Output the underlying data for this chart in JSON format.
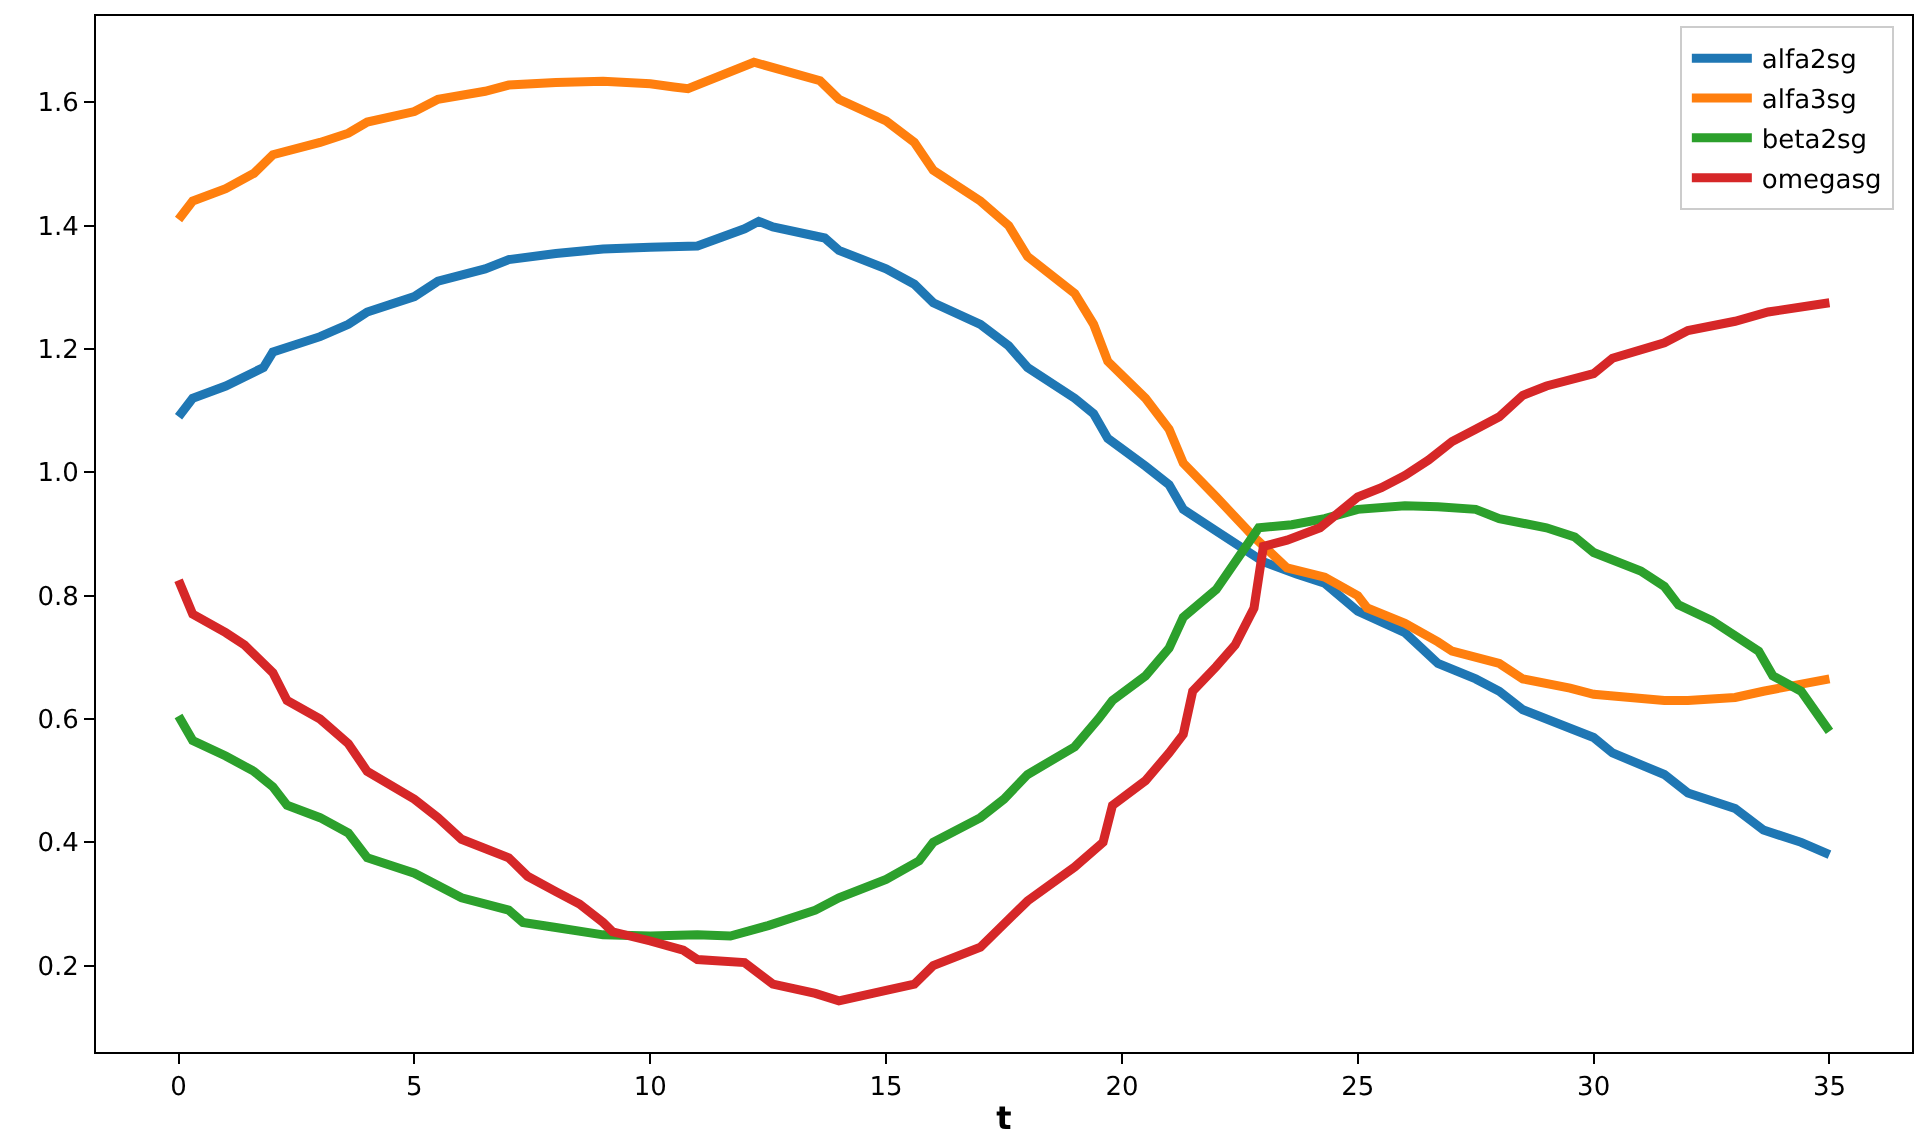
{
  "chart_data": {
    "type": "line",
    "xlabel": "t",
    "xlim": [
      -1.75,
      36.75
    ],
    "xticks": [
      0,
      5,
      10,
      15,
      20,
      25,
      30,
      35
    ],
    "ylim": [
      0.06,
      1.74
    ],
    "yticks": [
      0.2,
      0.4,
      0.6,
      0.8,
      {
        "value": 1,
        "label": "1.0"
      },
      1.2,
      1.4,
      1.6
    ],
    "legend": "top right",
    "marker": "none",
    "line_style": "solid",
    "series": [
      {
        "name": "alfa2sg",
        "color": "#1f77b4",
        "x": [
          0,
          0.3,
          1,
          1.8,
          2,
          3,
          3.6,
          4,
          5,
          5.5,
          6.5,
          7,
          8,
          9,
          10,
          11,
          12,
          12.3,
          12.6,
          13.7,
          14,
          15,
          15.6,
          16,
          17,
          17.6,
          18,
          19,
          19.4,
          19.7,
          20.5,
          21,
          21.3,
          22,
          23,
          23.7,
          24.3,
          25,
          26,
          26.7,
          27.5,
          28,
          28.5,
          29.5,
          30,
          30.4,
          31.5,
          32,
          33,
          33.6,
          34.4,
          35
        ],
        "values": [
          1.09,
          1.12,
          1.14,
          1.17,
          1.195,
          1.22,
          1.24,
          1.26,
          1.285,
          1.31,
          1.33,
          1.345,
          1.355,
          1.362,
          1.365,
          1.367,
          1.395,
          1.407,
          1.398,
          1.38,
          1.36,
          1.33,
          1.305,
          1.275,
          1.24,
          1.205,
          1.17,
          1.12,
          1.095,
          1.055,
          1.01,
          0.98,
          0.94,
          0.905,
          0.855,
          0.835,
          0.82,
          0.775,
          0.74,
          0.69,
          0.665,
          0.645,
          0.615,
          0.585,
          0.57,
          0.545,
          0.51,
          0.48,
          0.455,
          0.42,
          0.4,
          0.38
        ]
      },
      {
        "name": "alfa3sg",
        "color": "#ff7f0e",
        "x": [
          0,
          0.3,
          1,
          1.6,
          2,
          3,
          3.6,
          4,
          5,
          5.5,
          6.5,
          7,
          8,
          9,
          10,
          10.5,
          10.8,
          12.2,
          13.6,
          14,
          15,
          15.6,
          16,
          17,
          17.6,
          18,
          19,
          19.4,
          19.7,
          20.5,
          21,
          21.3,
          22,
          22.8,
          23.5,
          24.3,
          25,
          25.2,
          26,
          26.7,
          27,
          28,
          28.5,
          29.5,
          30,
          31.5,
          32,
          33,
          33.6,
          35
        ],
        "values": [
          1.41,
          1.44,
          1.46,
          1.485,
          1.515,
          1.535,
          1.55,
          1.568,
          1.585,
          1.605,
          1.618,
          1.628,
          1.632,
          1.634,
          1.63,
          1.625,
          1.622,
          1.665,
          1.635,
          1.605,
          1.57,
          1.535,
          1.49,
          1.44,
          1.4,
          1.35,
          1.29,
          1.24,
          1.18,
          1.12,
          1.07,
          1.015,
          0.96,
          0.895,
          0.845,
          0.83,
          0.8,
          0.78,
          0.755,
          0.725,
          0.71,
          0.69,
          0.665,
          0.65,
          0.64,
          0.63,
          0.63,
          0.635,
          0.645,
          0.665
        ]
      },
      {
        "name": "beta2sg",
        "color": "#2ca02c",
        "x": [
          0,
          0.3,
          1,
          1.6,
          2,
          2.3,
          3,
          3.6,
          4,
          5,
          5.5,
          6,
          7,
          7.3,
          8,
          9,
          10,
          11,
          11.7,
          12.5,
          13.5,
          14,
          15,
          15.7,
          16,
          17,
          17.5,
          18,
          19,
          19.5,
          19.8,
          20.5,
          21,
          21.3,
          22,
          22.9,
          23.6,
          24.3,
          25,
          26,
          26.7,
          27.5,
          28,
          29,
          29.6,
          30,
          31,
          31.5,
          31.8,
          32.5,
          33,
          33.5,
          33.8,
          34.4,
          35
        ],
        "values": [
          0.605,
          0.565,
          0.54,
          0.515,
          0.49,
          0.46,
          0.44,
          0.415,
          0.375,
          0.35,
          0.33,
          0.31,
          0.29,
          0.27,
          0.262,
          0.25,
          0.248,
          0.25,
          0.248,
          0.265,
          0.29,
          0.31,
          0.34,
          0.37,
          0.4,
          0.44,
          0.47,
          0.51,
          0.555,
          0.6,
          0.63,
          0.67,
          0.715,
          0.765,
          0.81,
          0.91,
          0.915,
          0.925,
          0.94,
          0.946,
          0.944,
          0.94,
          0.925,
          0.91,
          0.895,
          0.87,
          0.84,
          0.815,
          0.785,
          0.76,
          0.735,
          0.71,
          0.67,
          0.645,
          0.58
        ]
      },
      {
        "name": "omegasg",
        "color": "#d62728",
        "x": [
          0,
          0.3,
          1,
          1.4,
          2,
          2.3,
          3,
          3.6,
          4,
          5,
          5.5,
          6,
          7,
          7.4,
          8,
          8.5,
          9,
          9.2,
          10,
          10.7,
          11,
          12,
          12.6,
          13.5,
          14,
          15,
          15.6,
          16,
          17,
          17.4,
          18,
          19,
          19.6,
          19.8,
          20.5,
          21,
          21.3,
          21.5,
          22,
          22.4,
          22.8,
          23,
          23.5,
          24.2,
          25,
          25.5,
          26,
          26.5,
          27,
          27.5,
          28,
          28.5,
          29,
          30,
          30.4,
          31.5,
          32,
          33,
          33.7,
          35
        ],
        "values": [
          0.825,
          0.77,
          0.74,
          0.72,
          0.675,
          0.63,
          0.6,
          0.56,
          0.515,
          0.47,
          0.44,
          0.405,
          0.375,
          0.345,
          0.32,
          0.3,
          0.27,
          0.255,
          0.24,
          0.225,
          0.21,
          0.205,
          0.17,
          0.155,
          0.143,
          0.16,
          0.17,
          0.2,
          0.23,
          0.26,
          0.305,
          0.36,
          0.4,
          0.46,
          0.5,
          0.545,
          0.575,
          0.645,
          0.685,
          0.72,
          0.78,
          0.88,
          0.89,
          0.91,
          0.96,
          0.975,
          0.995,
          1.02,
          1.05,
          1.07,
          1.09,
          1.125,
          1.14,
          1.16,
          1.185,
          1.21,
          1.23,
          1.245,
          1.26,
          1.275
        ]
      }
    ]
  }
}
